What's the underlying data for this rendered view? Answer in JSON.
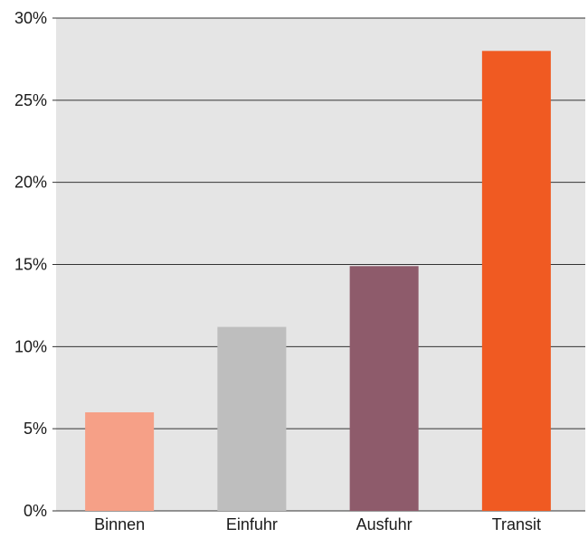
{
  "chart_data": {
    "type": "bar",
    "title": "",
    "xlabel": "",
    "ylabel": "",
    "categories": [
      "Binnen",
      "Einfuhr",
      "Ausfuhr",
      "Transit"
    ],
    "values": [
      6.0,
      11.2,
      14.9,
      28.0
    ],
    "value_unit": "%",
    "ylim": [
      0,
      30
    ],
    "yticks": [
      0,
      5,
      10,
      15,
      20,
      25,
      30
    ],
    "ytick_labels": [
      "0%",
      "5%",
      "10%",
      "15%",
      "20%",
      "25%",
      "30%"
    ],
    "grid": true,
    "legend": "none",
    "bar_colors": [
      "#F6A087",
      "#BEBEBE",
      "#8E5B6B",
      "#F05A22"
    ],
    "plot_background": "#E5E5E5",
    "gridline_color": "#333333"
  }
}
